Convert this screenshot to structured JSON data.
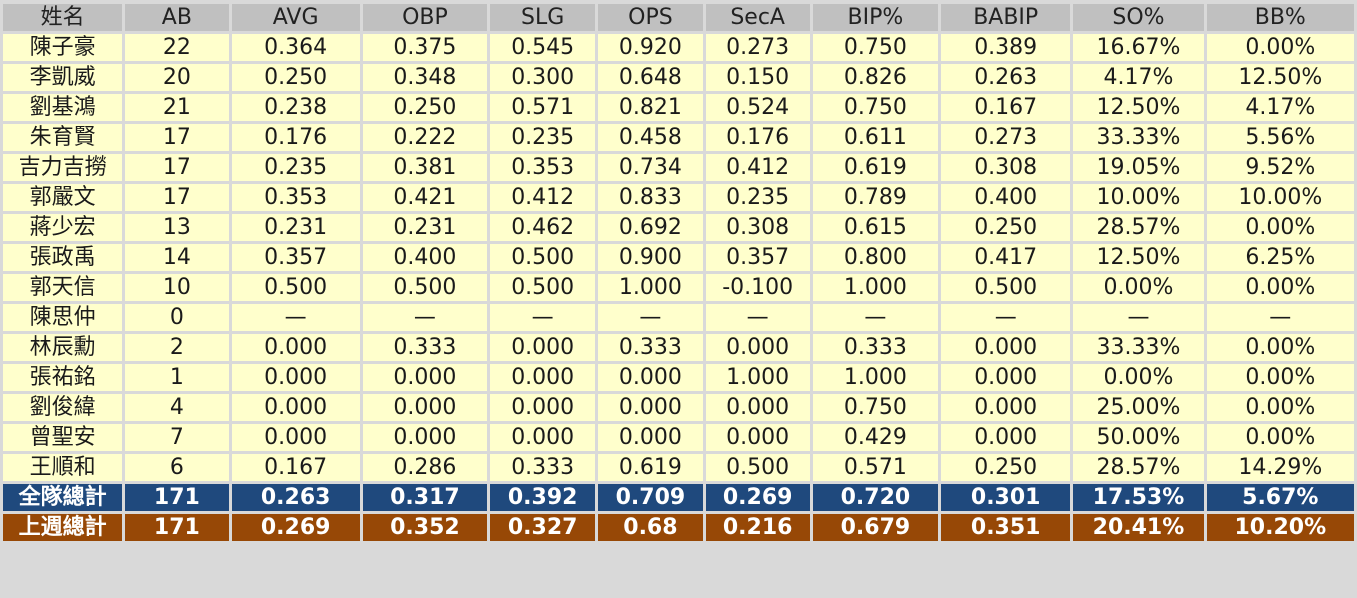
{
  "headers": [
    "姓名",
    "AB",
    "AVG",
    "OBP",
    "SLG",
    "OPS",
    "SecA",
    "BIP%",
    "BABIP",
    "SO%",
    "BB%"
  ],
  "rows": [
    [
      "陳子豪",
      "22",
      "0.364",
      "0.375",
      "0.545",
      "0.920",
      "0.273",
      "0.750",
      "0.389",
      "16.67%",
      "0.00%"
    ],
    [
      "李凱威",
      "20",
      "0.250",
      "0.348",
      "0.300",
      "0.648",
      "0.150",
      "0.826",
      "0.263",
      "4.17%",
      "12.50%"
    ],
    [
      "劉基鴻",
      "21",
      "0.238",
      "0.250",
      "0.571",
      "0.821",
      "0.524",
      "0.750",
      "0.167",
      "12.50%",
      "4.17%"
    ],
    [
      "朱育賢",
      "17",
      "0.176",
      "0.222",
      "0.235",
      "0.458",
      "0.176",
      "0.611",
      "0.273",
      "33.33%",
      "5.56%"
    ],
    [
      "吉力吉撈",
      "17",
      "0.235",
      "0.381",
      "0.353",
      "0.734",
      "0.412",
      "0.619",
      "0.308",
      "19.05%",
      "9.52%"
    ],
    [
      "郭嚴文",
      "17",
      "0.353",
      "0.421",
      "0.412",
      "0.833",
      "0.235",
      "0.789",
      "0.400",
      "10.00%",
      "10.00%"
    ],
    [
      "蔣少宏",
      "13",
      "0.231",
      "0.231",
      "0.462",
      "0.692",
      "0.308",
      "0.615",
      "0.250",
      "28.57%",
      "0.00%"
    ],
    [
      "張政禹",
      "14",
      "0.357",
      "0.400",
      "0.500",
      "0.900",
      "0.357",
      "0.800",
      "0.417",
      "12.50%",
      "6.25%"
    ],
    [
      "郭天信",
      "10",
      "0.500",
      "0.500",
      "0.500",
      "1.000",
      "-0.100",
      "1.000",
      "0.500",
      "0.00%",
      "0.00%"
    ],
    [
      "陳思仲",
      "0",
      "—",
      "—",
      "—",
      "—",
      "—",
      "—",
      "—",
      "—",
      "—"
    ],
    [
      "林辰勳",
      "2",
      "0.000",
      "0.333",
      "0.000",
      "0.333",
      "0.000",
      "0.333",
      "0.000",
      "33.33%",
      "0.00%"
    ],
    [
      "張祐銘",
      "1",
      "0.000",
      "0.000",
      "0.000",
      "0.000",
      "1.000",
      "1.000",
      "0.000",
      "0.00%",
      "0.00%"
    ],
    [
      "劉俊緯",
      "4",
      "0.000",
      "0.000",
      "0.000",
      "0.000",
      "0.000",
      "0.750",
      "0.000",
      "25.00%",
      "0.00%"
    ],
    [
      "曾聖安",
      "7",
      "0.000",
      "0.000",
      "0.000",
      "0.000",
      "0.000",
      "0.429",
      "0.000",
      "50.00%",
      "0.00%"
    ],
    [
      "王順和",
      "6",
      "0.167",
      "0.286",
      "0.333",
      "0.619",
      "0.500",
      "0.571",
      "0.250",
      "28.57%",
      "14.29%"
    ]
  ],
  "team_total": [
    "全隊總計",
    "171",
    "0.263",
    "0.317",
    "0.392",
    "0.709",
    "0.269",
    "0.720",
    "0.301",
    "17.53%",
    "5.67%"
  ],
  "last_week_total": [
    "上週總計",
    "171",
    "0.269",
    "0.352",
    "0.327",
    "0.68",
    "0.216",
    "0.679",
    "0.351",
    "20.41%",
    "10.20%"
  ],
  "colors": {
    "header": "#c0c0c0",
    "cell": "#ffffcc",
    "team_total": "#1f497d",
    "last_week_total": "#974806"
  }
}
